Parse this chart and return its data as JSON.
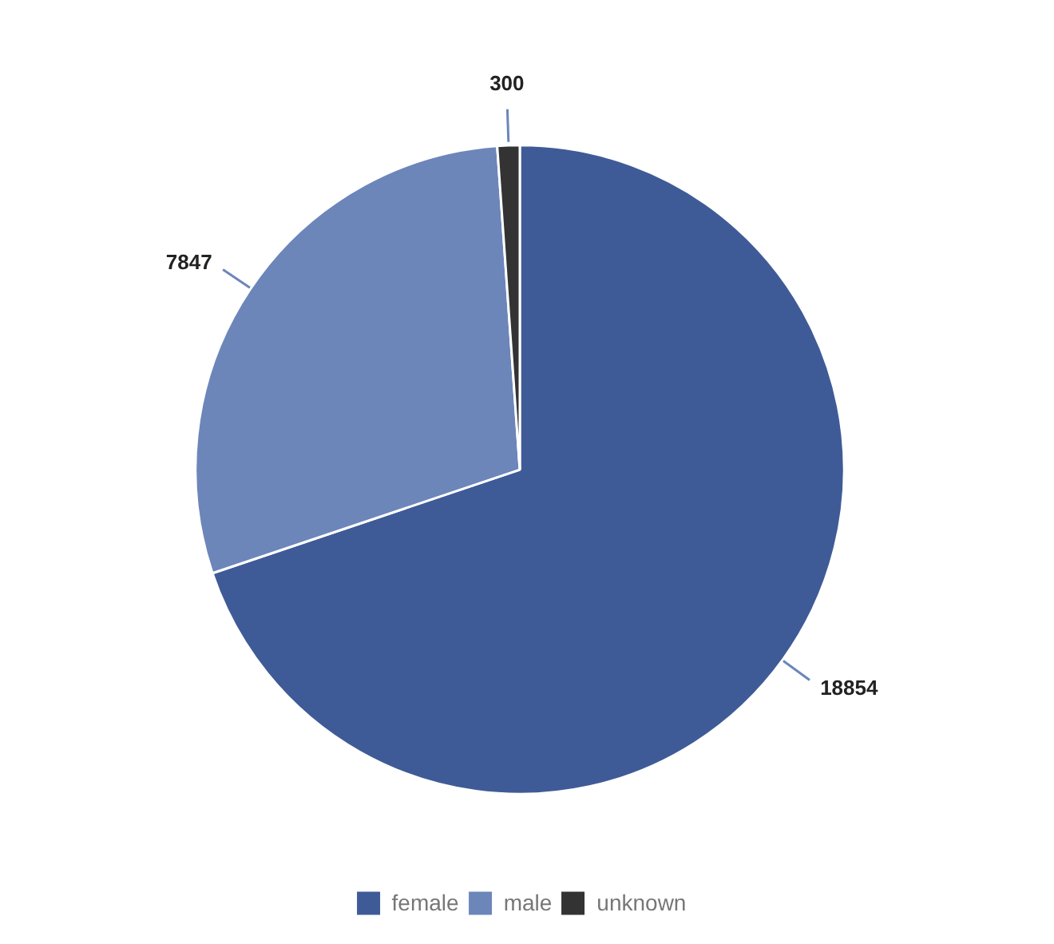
{
  "chart_data": {
    "type": "pie",
    "categories": [
      "female",
      "male",
      "unknown"
    ],
    "values": [
      18854,
      7847,
      300
    ],
    "colors": [
      "#3f5b97",
      "#6c86ba",
      "#333333"
    ],
    "data_labels": true,
    "legend": "bottom"
  }
}
